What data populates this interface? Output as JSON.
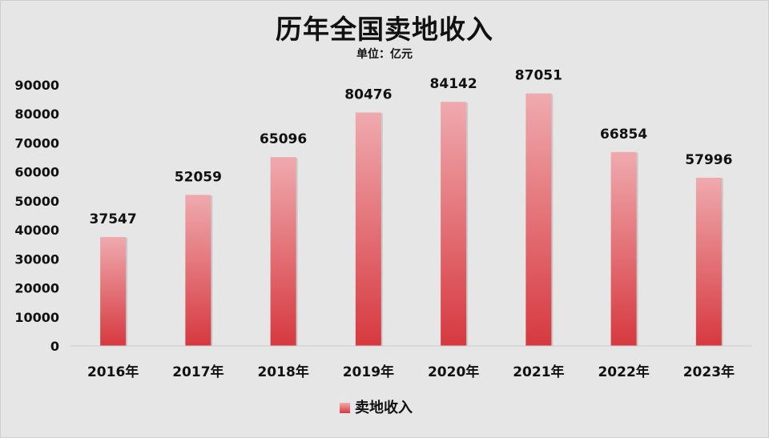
{
  "chart_data": {
    "type": "bar",
    "title": "历年全国卖地收入",
    "subtitle": "单位：亿元",
    "categories": [
      "2016年",
      "2017年",
      "2018年",
      "2019年",
      "2020年",
      "2021年",
      "2022年",
      "2023年"
    ],
    "series": [
      {
        "name": "卖地收入",
        "values": [
          37547,
          52059,
          65096,
          80476,
          84142,
          87051,
          66854,
          57996
        ]
      }
    ],
    "y_ticks": [
      "0",
      "10000",
      "20000",
      "30000",
      "40000",
      "50000",
      "60000",
      "70000",
      "80000",
      "90000"
    ],
    "ylim": [
      0,
      90000
    ],
    "xlabel": "",
    "ylabel": "",
    "grid": false,
    "legend_position": "bottom",
    "colors": {
      "bar_top": "#efaaae",
      "bar_bottom": "#d6393f",
      "background": "#e6e6e6",
      "text": "#111111"
    }
  }
}
